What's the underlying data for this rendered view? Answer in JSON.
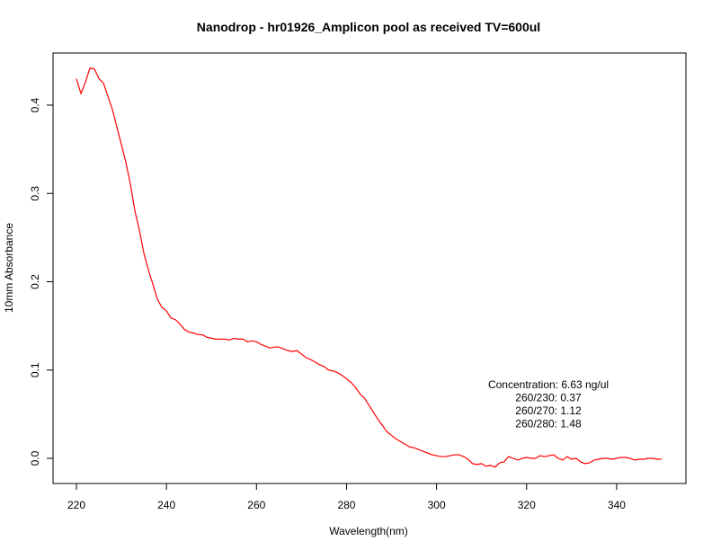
{
  "chart_data": {
    "type": "line",
    "title": "Nanodrop - hr01926_Amplicon pool as received TV=600ul",
    "xlabel": "Wavelength(nm)",
    "ylabel": "10mm Absorbance",
    "xlim": [
      220,
      350
    ],
    "ylim": [
      -0.03,
      0.46
    ],
    "x_ticks": [
      220,
      240,
      260,
      280,
      300,
      320,
      340
    ],
    "y_ticks": [
      0.0,
      0.1,
      0.2,
      0.3,
      0.4
    ],
    "x_tick_labels": [
      "220",
      "240",
      "260",
      "280",
      "300",
      "320",
      "340"
    ],
    "y_tick_labels": [
      "0.0",
      "0.1",
      "0.2",
      "0.3",
      "0.4"
    ],
    "grid": false,
    "series": [
      {
        "color": "#ff0000",
        "x": [
          220,
          221,
          222,
          223,
          224,
          225,
          226,
          227,
          228,
          229,
          230,
          231,
          232,
          233,
          234,
          235,
          236,
          237,
          238,
          239,
          240,
          241,
          242,
          243,
          244,
          245,
          246,
          247,
          248,
          249,
          250,
          251,
          252,
          253,
          254,
          255,
          256,
          257,
          258,
          259,
          260,
          261,
          262,
          263,
          264,
          265,
          266,
          267,
          268,
          269,
          270,
          271,
          272,
          273,
          274,
          275,
          276,
          277,
          278,
          279,
          280,
          281,
          282,
          283,
          284,
          285,
          286,
          287,
          288,
          289,
          290,
          291,
          292,
          293,
          294,
          295,
          296,
          297,
          298,
          299,
          300,
          301,
          302,
          303,
          304,
          305,
          306,
          307,
          308,
          309,
          310,
          311,
          312,
          313,
          314,
          315,
          316,
          317,
          318,
          319,
          320,
          321,
          322,
          323,
          324,
          325,
          326,
          327,
          328,
          329,
          330,
          331,
          332,
          333,
          334,
          335,
          336,
          337,
          338,
          339,
          340,
          341,
          342,
          343,
          344,
          345,
          346,
          347,
          348,
          349,
          350
        ],
        "y": [
          0.43,
          0.413,
          0.426,
          0.442,
          0.441,
          0.43,
          0.425,
          0.41,
          0.395,
          0.375,
          0.355,
          0.335,
          0.31,
          0.28,
          0.258,
          0.232,
          0.213,
          0.197,
          0.18,
          0.171,
          0.167,
          0.159,
          0.157,
          0.152,
          0.146,
          0.143,
          0.142,
          0.14,
          0.14,
          0.137,
          0.136,
          0.135,
          0.135,
          0.135,
          0.134,
          0.136,
          0.135,
          0.135,
          0.132,
          0.133,
          0.132,
          0.129,
          0.127,
          0.125,
          0.126,
          0.126,
          0.124,
          0.122,
          0.121,
          0.122,
          0.118,
          0.114,
          0.112,
          0.109,
          0.106,
          0.104,
          0.1,
          0.099,
          0.097,
          0.094,
          0.09,
          0.086,
          0.08,
          0.073,
          0.068,
          0.06,
          0.052,
          0.044,
          0.037,
          0.03,
          0.026,
          0.022,
          0.019,
          0.016,
          0.013,
          0.012,
          0.01,
          0.008,
          0.006,
          0.004,
          0.003,
          0.002,
          0.002,
          0.003,
          0.004,
          0.004,
          0.002,
          -0.001,
          -0.006,
          -0.007,
          -0.006,
          -0.009,
          -0.008,
          -0.01,
          -0.005,
          -0.004,
          0.002,
          0.0,
          -0.002,
          0.0,
          0.001,
          0.0,
          0.0,
          0.003,
          0.002,
          0.003,
          0.004,
          0.0,
          -0.002,
          0.002,
          -0.001,
          0.0,
          -0.004,
          -0.006,
          -0.005,
          -0.002,
          -0.001,
          0.0,
          0.0,
          -0.001,
          0.0,
          0.001,
          0.001,
          0.0,
          -0.002,
          -0.001,
          -0.001,
          0.0,
          0.0,
          -0.001,
          -0.001
        ]
      }
    ],
    "annotations": [
      "Concentration: 6.63 ng/ul",
      "260/230: 0.37",
      "260/270: 1.12",
      "260/280: 1.48"
    ]
  }
}
